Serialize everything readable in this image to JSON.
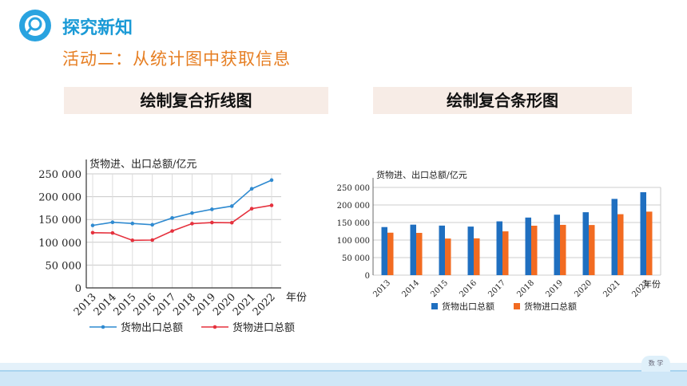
{
  "header": {
    "title": "探究新知",
    "subtitle": "活动二：从统计图中获取信息"
  },
  "banners": {
    "line": "绘制复合折线图",
    "bar": "绘制复合条形图"
  },
  "footer": {
    "badge": "数 学"
  },
  "colors": {
    "accent": "#1a9ad6",
    "subtitle": "#e67e22",
    "export": "#1f6fc0",
    "import": "#f26b21",
    "line_export": "#2f8ad0",
    "line_import": "#e5313d"
  },
  "chart_data": [
    {
      "type": "line",
      "ylabel": "货物进、出口总额/亿元",
      "xlabel": "年份",
      "categories": [
        "2013",
        "2014",
        "2015",
        "2016",
        "2017",
        "2018",
        "2019",
        "2020",
        "2021",
        "2022"
      ],
      "yticks": [
        "0",
        "50 000",
        "100 000",
        "150 000",
        "200 000",
        "250 000"
      ],
      "ylim": [
        0,
        250000
      ],
      "grid": true,
      "legend": "bottom",
      "series": [
        {
          "name": "货物出口总额",
          "values": [
            137000,
            143900,
            141200,
            138400,
            153300,
            164100,
            172300,
            179300,
            217300,
            236300
          ]
        },
        {
          "name": "货物进口总额",
          "values": [
            121000,
            120400,
            104300,
            104900,
            124800,
            140900,
            143300,
            142900,
            173700,
            181000
          ]
        }
      ]
    },
    {
      "type": "bar",
      "ylabel": "货物进、出口总额/亿元",
      "xlabel": "年份",
      "categories": [
        "2013",
        "2014",
        "2015",
        "2016",
        "2017",
        "2018",
        "2019",
        "2020",
        "2021",
        "2022"
      ],
      "yticks": [
        "0",
        "50 000",
        "100 000",
        "150 000",
        "200 000",
        "250 000"
      ],
      "ylim": [
        0,
        250000
      ],
      "grid": true,
      "legend": "bottom",
      "series": [
        {
          "name": "货物出口总额",
          "values": [
            137000,
            143900,
            141200,
            138400,
            153300,
            164100,
            172300,
            179300,
            217300,
            236300
          ]
        },
        {
          "name": "货物进口总额",
          "values": [
            121000,
            120400,
            104300,
            104900,
            124800,
            140900,
            143300,
            142900,
            173700,
            181000
          ]
        }
      ]
    }
  ]
}
